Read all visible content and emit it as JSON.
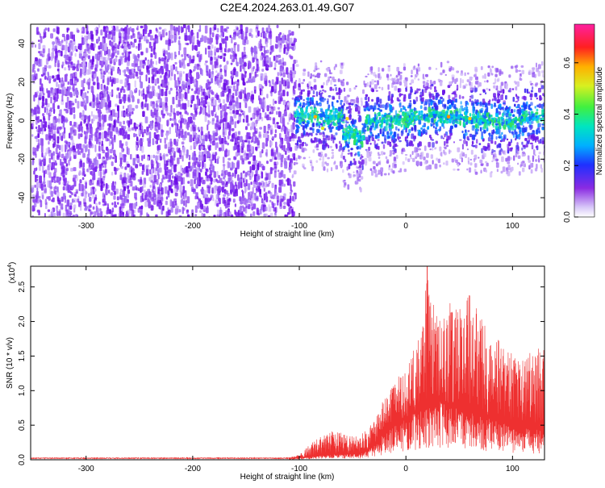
{
  "title": "C2E4.2024.263.01.49.G07",
  "chart_data": [
    {
      "type": "heatmap",
      "xlabel": "Height of straight line (km)",
      "ylabel": "Frequency (Hz)",
      "xlim": [
        -352,
        130
      ],
      "ylim": [
        -50,
        50
      ],
      "xticks": [
        -300,
        -200,
        -100,
        0,
        100
      ],
      "yticks": [
        -40,
        -20,
        0,
        20,
        40
      ],
      "colorbar": {
        "label": "Normalized spectral amplitude",
        "range": [
          0,
          0.75
        ],
        "ticks": [
          0.0,
          0.2,
          0.4,
          0.6
        ],
        "tick_labels": [
          "0.0",
          "0.2",
          "0.4",
          "0.6"
        ]
      },
      "features": {
        "noise_region_x": [
          -352,
          -105
        ],
        "signal_region_x": [
          -105,
          130
        ],
        "signal_center_freq_hz": 0,
        "strong_trace_color": "#00d8a0",
        "noise_color": "#7a1ff0"
      }
    },
    {
      "type": "line",
      "xlabel": "Height of straight line (km)",
      "ylabel": "SNR (10 * v/v)",
      "scale_label": "(x10^4)",
      "xlim": [
        -352,
        130
      ],
      "ylim": [
        0,
        2.8
      ],
      "xticks": [
        -300,
        -200,
        -100,
        0,
        100
      ],
      "yticks": [
        0.0,
        0.5,
        1.0,
        1.5,
        2.0,
        2.5
      ],
      "ytick_labels": [
        "0.0",
        "0.5",
        "1.0",
        "1.5",
        "2.0",
        "2.5"
      ],
      "color": "#ee3030",
      "envelope": {
        "x": [
          -352,
          -110,
          -100,
          -85,
          -70,
          -55,
          -45,
          -35,
          -25,
          -15,
          -5,
          5,
          15,
          20,
          30,
          40,
          50,
          60,
          70,
          80,
          90,
          100,
          110,
          120,
          130
        ],
        "y_peak": [
          0.02,
          0.03,
          0.08,
          0.3,
          0.42,
          0.38,
          0.35,
          0.45,
          0.75,
          1.05,
          1.25,
          1.55,
          1.85,
          2.75,
          2.1,
          2.3,
          2.2,
          2.45,
          2.05,
          1.95,
          1.65,
          1.55,
          1.55,
          1.65,
          1.6
        ],
        "y_base": [
          0.02,
          0.02,
          0.03,
          0.05,
          0.08,
          0.08,
          0.08,
          0.15,
          0.3,
          0.45,
          0.55,
          0.65,
          0.75,
          0.8,
          0.85,
          0.8,
          0.75,
          0.7,
          0.65,
          0.6,
          0.55,
          0.5,
          0.45,
          0.45,
          0.45
        ]
      }
    }
  ]
}
